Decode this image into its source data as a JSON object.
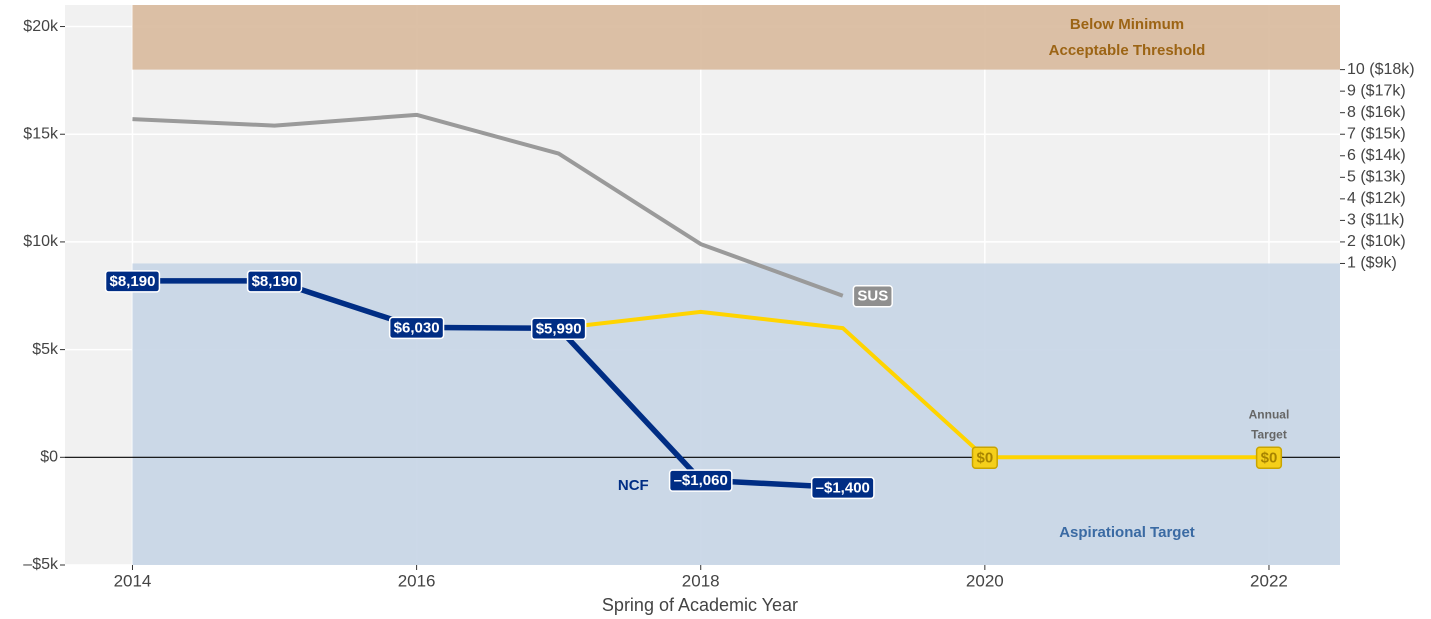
{
  "chart_data": {
    "type": "line",
    "x_label": "Spring of Academic Year",
    "xlim": [
      2013.525,
      2022.5
    ],
    "xticks": [
      2014,
      2016,
      2018,
      2020,
      2022
    ],
    "ylim": [
      -5000,
      21000
    ],
    "yticks": [
      {
        "value": -5000,
        "label": "–$5k"
      },
      {
        "value": 0,
        "label": "$0"
      },
      {
        "value": 5000,
        "label": "$5k"
      },
      {
        "value": 10000,
        "label": "$10k"
      },
      {
        "value": 15000,
        "label": "$15k"
      },
      {
        "value": 20000,
        "label": "$20k"
      }
    ],
    "y2lim": [
      -5000,
      21000
    ],
    "y2ticks": [
      {
        "value": 18000,
        "label": "10 ($18k)"
      },
      {
        "value": 17000,
        "label": "9 ($17k)"
      },
      {
        "value": 16000,
        "label": "8 ($16k)"
      },
      {
        "value": 15000,
        "label": "7 ($15k)"
      },
      {
        "value": 14000,
        "label": "6 ($14k)"
      },
      {
        "value": 13000,
        "label": "5 ($13k)"
      },
      {
        "value": 12000,
        "label": "4 ($12k)"
      },
      {
        "value": 11000,
        "label": "3 ($11k)"
      },
      {
        "value": 10000,
        "label": "2 ($10k)"
      },
      {
        "value": 9000,
        "label": "1 ($9k)"
      }
    ],
    "grid": true,
    "bands": [
      {
        "label_lines": [
          "Below Minimum",
          "Acceptable Threshold"
        ],
        "from": 18000,
        "to": 21000,
        "x_from": 2014,
        "color": "#d8b99c",
        "text_color": "#9c6414"
      },
      {
        "label_lines": [
          "Aspirational Target"
        ],
        "from": -5000,
        "to": 9000,
        "x_from": 2014,
        "color": "#c6d5e5",
        "text_color": "#3a6aa3"
      }
    ],
    "annotations": [
      {
        "label_lines": [
          "Annual",
          "Target"
        ],
        "x": 2022
      }
    ],
    "series": [
      {
        "name": "SUS",
        "color": "#9a9a9a",
        "x": [
          2014,
          2015,
          2016,
          2017,
          2018,
          2019
        ],
        "values": [
          15700,
          15400,
          15900,
          14100,
          9900,
          7500
        ]
      },
      {
        "color": "#ffd400",
        "x": [
          2017,
          2018,
          2019,
          2020,
          2021,
          2022
        ],
        "values": [
          5990,
          6750,
          6000,
          0,
          0,
          0
        ],
        "value_labels": [
          null,
          null,
          null,
          "$0",
          null,
          "$0"
        ]
      },
      {
        "name": "NCF",
        "color": "#002d84",
        "x": [
          2014,
          2015,
          2016,
          2017,
          2018,
          2019
        ],
        "values": [
          8190,
          8190,
          6030,
          5990,
          -1060,
          -1400
        ],
        "value_labels": [
          "$8,190",
          "$8,190",
          "$6,030",
          "$5,990",
          "–$1,060",
          "–$1,400"
        ]
      }
    ]
  }
}
